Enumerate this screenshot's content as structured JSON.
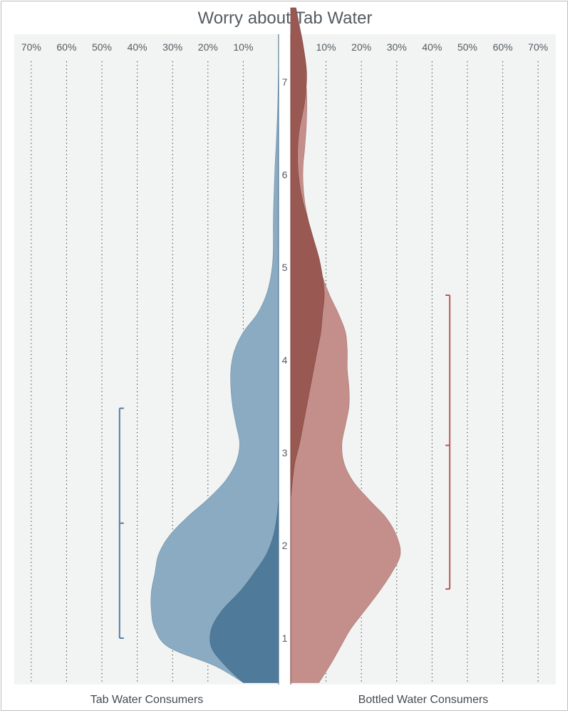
{
  "chart_data": {
    "type": "violin",
    "title": "Worry about Tab Water",
    "y_ticks": [
      1,
      2,
      3,
      4,
      5,
      6,
      7
    ],
    "ylim": [
      0.5,
      7.8
    ],
    "x_tick_labels": [
      "10%",
      "20%",
      "30%",
      "40%",
      "50%",
      "60%",
      "70%"
    ],
    "x_tick_values": [
      10,
      20,
      30,
      40,
      50,
      60,
      70
    ],
    "xlim": [
      0,
      70
    ],
    "grid": "dotted-vertical",
    "colors": {
      "tab_light": "#8aabc2",
      "tab_dark": "#4f7a9a",
      "tab_bracket": "#4f7fa8",
      "bottled_light": "#c48f8a",
      "bottled_dark": "#995952",
      "bottled_bracket": "#b55a52",
      "plot_bg": "#f2f4f3",
      "text": "#555b62"
    },
    "groups": [
      {
        "label": "Tab Water Consumers",
        "side": "left",
        "outer_density": [
          [
            0.52,
            10
          ],
          [
            0.7,
            18
          ],
          [
            0.9,
            31
          ],
          [
            1.1,
            35
          ],
          [
            1.3,
            36
          ],
          [
            1.5,
            36
          ],
          [
            1.7,
            35
          ],
          [
            1.9,
            34
          ],
          [
            2.1,
            31
          ],
          [
            2.3,
            26
          ],
          [
            2.5,
            20
          ],
          [
            2.7,
            15
          ],
          [
            2.9,
            12
          ],
          [
            3.1,
            11
          ],
          [
            3.3,
            12
          ],
          [
            3.5,
            13
          ],
          [
            3.7,
            13.5
          ],
          [
            3.9,
            13.5
          ],
          [
            4.1,
            12.5
          ],
          [
            4.3,
            10
          ],
          [
            4.5,
            6
          ],
          [
            4.7,
            3.5
          ],
          [
            4.9,
            2.2
          ],
          [
            5.1,
            1.6
          ],
          [
            5.3,
            1.5
          ],
          [
            5.5,
            1.5
          ],
          [
            5.8,
            1.3
          ],
          [
            6.1,
            1
          ],
          [
            6.4,
            0.6
          ],
          [
            6.8,
            0.2
          ],
          [
            7.3,
            0
          ]
        ],
        "inner_density": [
          [
            0.52,
            10
          ],
          [
            0.7,
            15
          ],
          [
            0.9,
            19
          ],
          [
            1.1,
            19
          ],
          [
            1.3,
            16
          ],
          [
            1.5,
            11
          ],
          [
            1.7,
            7
          ],
          [
            1.9,
            3.5
          ],
          [
            2.1,
            1.5
          ],
          [
            2.3,
            0.5
          ],
          [
            2.5,
            0
          ]
        ],
        "bracket": {
          "low": 1.0,
          "mid": 2.24,
          "high": 3.48,
          "x": 45
        }
      },
      {
        "label": "Bottled Water Consumers",
        "side": "right",
        "outer_density": [
          [
            0.52,
            8
          ],
          [
            0.7,
            11
          ],
          [
            0.9,
            14
          ],
          [
            1.1,
            17
          ],
          [
            1.3,
            21
          ],
          [
            1.5,
            25
          ],
          [
            1.7,
            28.5
          ],
          [
            1.9,
            31
          ],
          [
            2.1,
            30
          ],
          [
            2.3,
            27
          ],
          [
            2.5,
            22
          ],
          [
            2.7,
            17.5
          ],
          [
            2.9,
            15
          ],
          [
            3.1,
            14.5
          ],
          [
            3.3,
            15.5
          ],
          [
            3.5,
            16.5
          ],
          [
            3.7,
            16.5
          ],
          [
            3.9,
            16
          ],
          [
            4.1,
            16
          ],
          [
            4.3,
            15.5
          ],
          [
            4.5,
            13.5
          ],
          [
            4.7,
            11
          ],
          [
            4.9,
            9
          ],
          [
            5.1,
            7.5
          ],
          [
            5.3,
            6
          ],
          [
            5.5,
            5
          ],
          [
            5.7,
            4
          ],
          [
            5.9,
            3.5
          ],
          [
            6.1,
            3.5
          ],
          [
            6.3,
            4
          ],
          [
            6.6,
            4.5
          ],
          [
            6.9,
            4.5
          ],
          [
            7.2,
            3.5
          ],
          [
            7.5,
            2.5
          ],
          [
            7.8,
            1.5
          ]
        ],
        "inner_density": [
          [
            2.5,
            0
          ],
          [
            2.7,
            0.5
          ],
          [
            2.9,
            1.2
          ],
          [
            3.1,
            2.5
          ],
          [
            3.3,
            3.5
          ],
          [
            3.5,
            4.5
          ],
          [
            3.7,
            5.5
          ],
          [
            3.9,
            6.5
          ],
          [
            4.1,
            7.5
          ],
          [
            4.3,
            8.5
          ],
          [
            4.5,
            9
          ],
          [
            4.7,
            9.5
          ],
          [
            4.9,
            9
          ],
          [
            5.1,
            8
          ],
          [
            5.3,
            6.5
          ],
          [
            5.5,
            5
          ],
          [
            5.7,
            3.5
          ],
          [
            5.9,
            2.5
          ],
          [
            6.1,
            2
          ],
          [
            6.3,
            2
          ],
          [
            6.5,
            2.5
          ],
          [
            6.8,
            4
          ],
          [
            7.1,
            4.5
          ],
          [
            7.4,
            3.5
          ],
          [
            7.6,
            2.5
          ],
          [
            7.8,
            1.5
          ]
        ],
        "bracket": {
          "low": 1.53,
          "mid": 3.08,
          "high": 4.7,
          "x": 45
        }
      }
    ]
  }
}
